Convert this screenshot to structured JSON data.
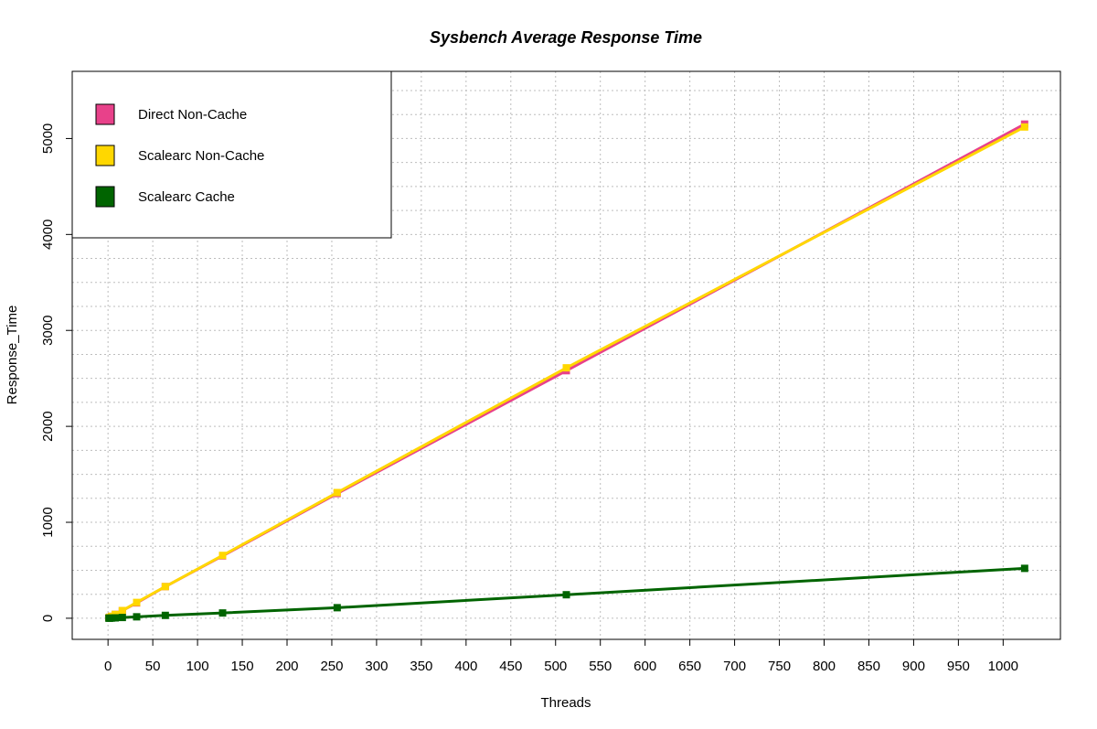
{
  "chart_data": {
    "type": "line",
    "title": "Sysbench Average Response Time",
    "xlabel": "Threads",
    "ylabel": "Response_Time",
    "xlim": [
      -40,
      1064
    ],
    "ylim": [
      -220,
      5700
    ],
    "x_ticks": [
      0,
      50,
      100,
      150,
      200,
      250,
      300,
      350,
      400,
      450,
      500,
      550,
      600,
      650,
      700,
      750,
      800,
      850,
      900,
      950,
      1000
    ],
    "y_ticks": [
      0,
      1000,
      2000,
      3000,
      4000,
      5000
    ],
    "grid": true,
    "legend_position": "top-left",
    "x": [
      1,
      2,
      4,
      8,
      16,
      32,
      64,
      128,
      256,
      512,
      1024
    ],
    "series": [
      {
        "name": "Direct Non-Cache",
        "color": "#e8418a",
        "values": [
          5,
          10,
          20,
          40,
          80,
          160,
          330,
          650,
          1300,
          2580,
          5150
        ]
      },
      {
        "name": "Scalearc Non-Cache",
        "color": "#ffd700",
        "values": [
          5,
          10,
          20,
          40,
          80,
          165,
          330,
          655,
          1310,
          2610,
          5120
        ]
      },
      {
        "name": "Scalearc Cache",
        "color": "#006400",
        "values": [
          1,
          1,
          2,
          4,
          8,
          15,
          30,
          55,
          110,
          245,
          520
        ]
      }
    ]
  }
}
